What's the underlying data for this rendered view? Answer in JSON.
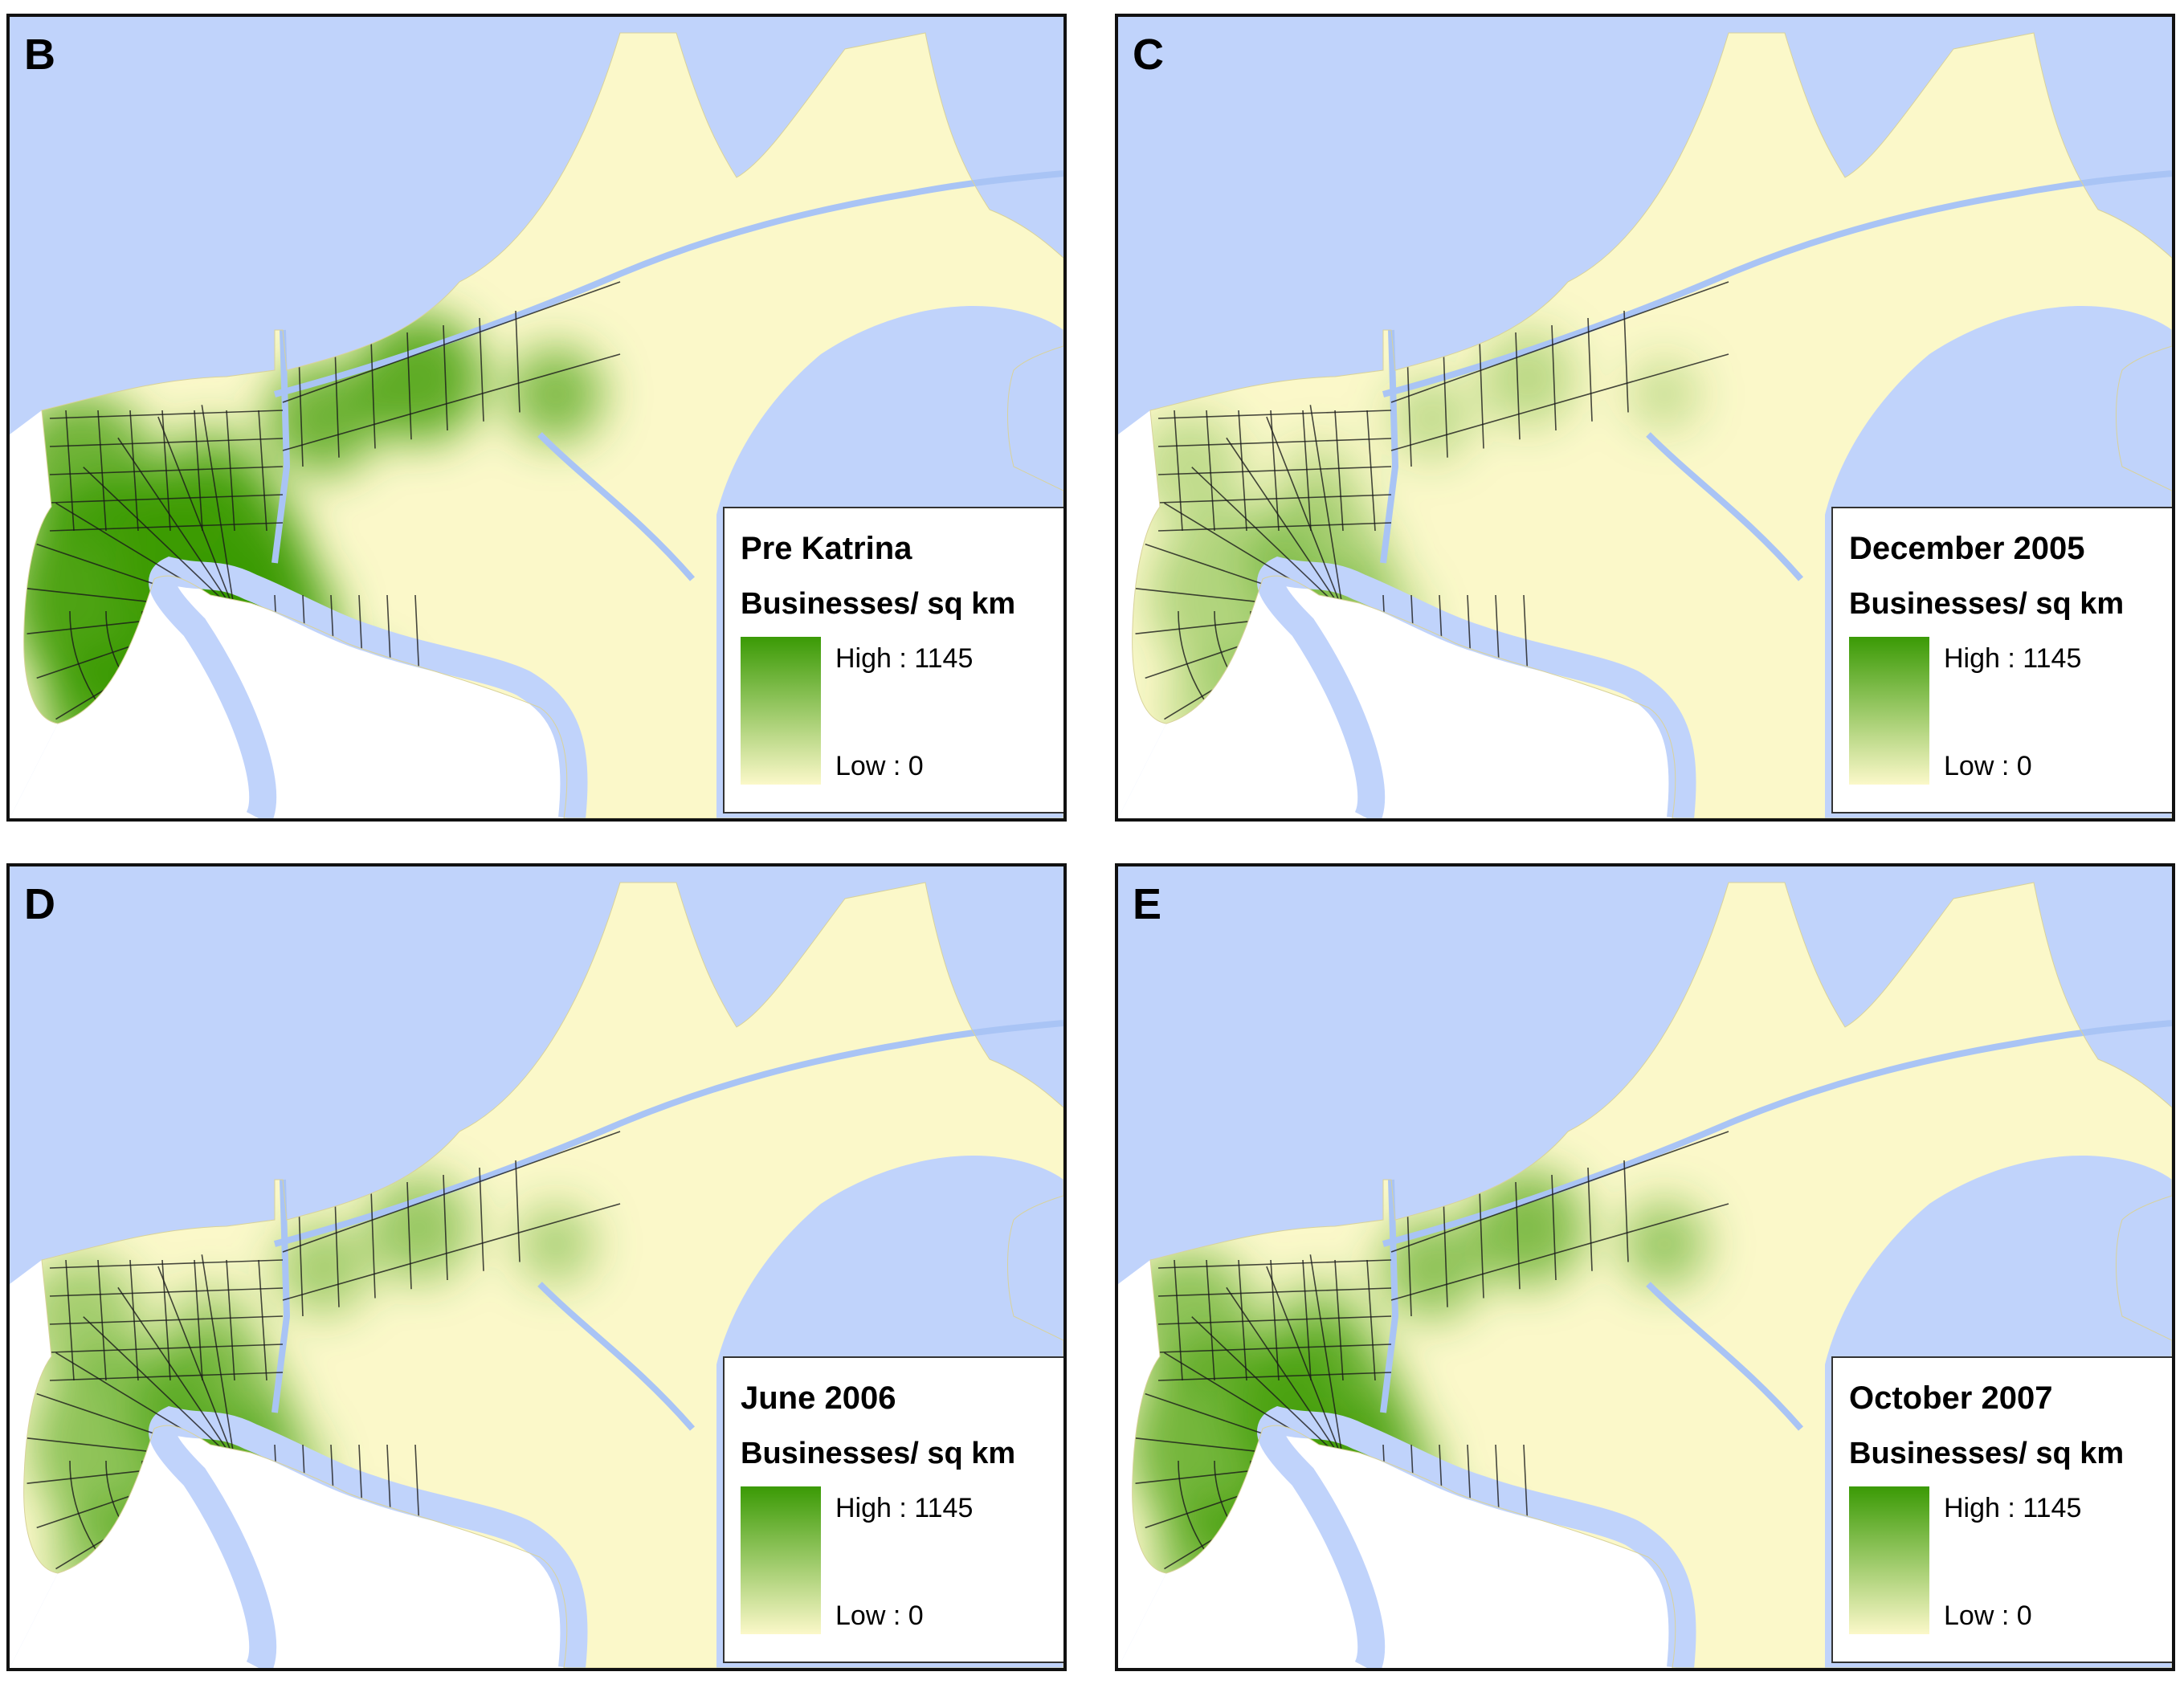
{
  "colors": {
    "water": "#c0d3fb",
    "land": "#fbf8c9",
    "outside": "#ffffff",
    "density_high": "#3a9a05",
    "density_low": "#fbf8c9",
    "boundary_line": "#1a1a1a",
    "canal": "#a9c4f5"
  },
  "legend_scale": {
    "high_value": 1145,
    "low_value": 0,
    "unit": "Businesses/ sq km"
  },
  "panels": [
    {
      "letter": "B",
      "title": "Pre Katrina",
      "legend_label": "Businesses/ sq km",
      "high_label": "High : 1145",
      "low_label": "Low : 0",
      "density_level": 1.0
    },
    {
      "letter": "C",
      "title": "December 2005",
      "legend_label": "Businesses/ sq km",
      "high_label": "High : 1145",
      "low_label": "Low : 0",
      "density_level": 0.42
    },
    {
      "letter": "D",
      "title": "June 2006",
      "legend_label": "Businesses/ sq km",
      "high_label": "High : 1145",
      "low_label": "Low : 0",
      "density_level": 0.62
    },
    {
      "letter": "E",
      "title": "October 2007",
      "legend_label": "Businesses/ sq km",
      "high_label": "High : 1145",
      "low_label": "Low : 0",
      "density_level": 0.78
    }
  ]
}
